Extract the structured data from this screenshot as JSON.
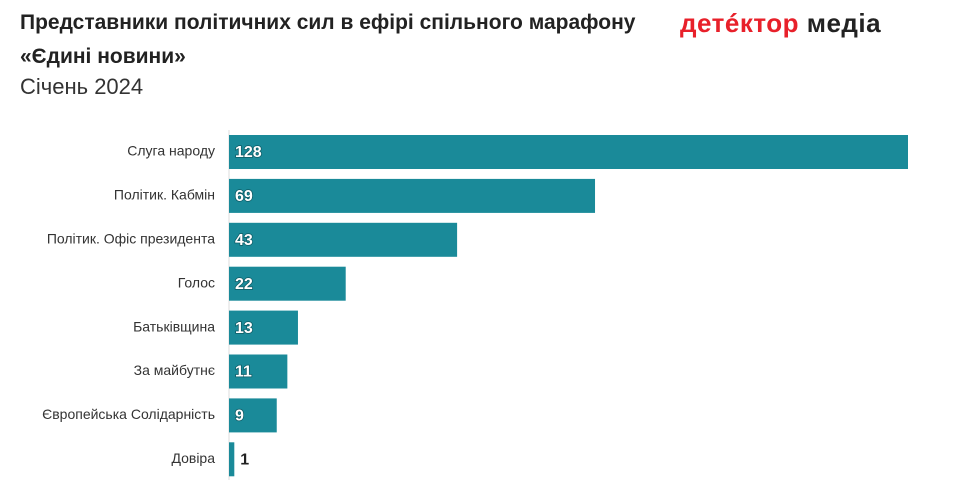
{
  "chart_data": {
    "type": "bar",
    "orientation": "horizontal",
    "title": "Представники політичних сил в ефірі спільного марафону «Єдині новини»",
    "subtitle": "Січень 2024",
    "categories": [
      "Слуга народу",
      "Політик. Кабмін",
      "Політик. Офіс президента",
      "Голос",
      "Батьківщина",
      "За майбутнє",
      "Європейська Солідарність",
      "Довіра"
    ],
    "values": [
      128,
      69,
      43,
      22,
      13,
      11,
      9,
      1
    ],
    "color": "#1a8a99",
    "xlim": [
      0,
      128
    ]
  },
  "logo": [
    "детéктор",
    "медіа"
  ]
}
